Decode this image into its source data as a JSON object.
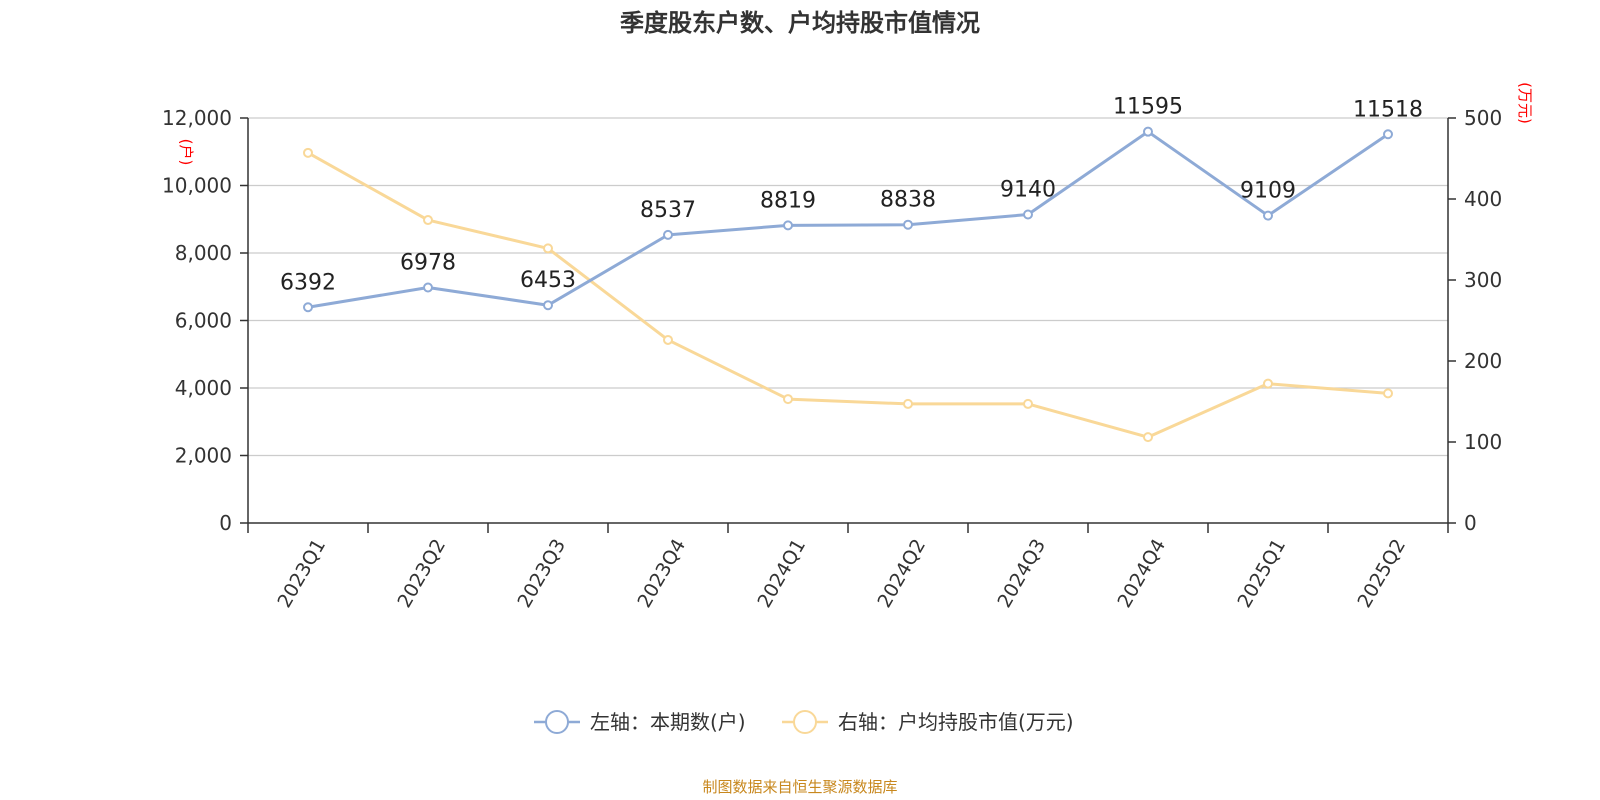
{
  "chart_data": {
    "type": "line",
    "title": "季度股东户数、户均持股市值情况",
    "categories": [
      "2023Q1",
      "2023Q2",
      "2023Q3",
      "2023Q4",
      "2024Q1",
      "2024Q2",
      "2024Q3",
      "2024Q4",
      "2025Q1",
      "2025Q2"
    ],
    "series": [
      {
        "name": "左轴：本期数(户)",
        "axis": "left",
        "color": "#8eaad6",
        "values": [
          6392,
          6978,
          6453,
          8537,
          8819,
          8838,
          9140,
          11595,
          9109,
          11518
        ],
        "show_labels": true
      },
      {
        "name": "右轴：户均持股市值(万元)",
        "axis": "right",
        "color": "#f9d898",
        "values": [
          457,
          374,
          339,
          226,
          153,
          147,
          147,
          106,
          172,
          160
        ],
        "show_labels": false
      }
    ],
    "y_left": {
      "min": 0,
      "max": 12000,
      "ticks": [
        0,
        2000,
        4000,
        6000,
        8000,
        10000,
        12000
      ],
      "tick_labels": [
        "0",
        "2,000",
        "4,000",
        "6,000",
        "8,000",
        "10,000",
        "12,000"
      ],
      "unit": "(户)"
    },
    "y_right": {
      "min": 0,
      "max": 500,
      "ticks": [
        0,
        100,
        200,
        300,
        400,
        500
      ],
      "tick_labels": [
        "0",
        "100",
        "200",
        "300",
        "400",
        "500"
      ],
      "unit": "(万元)"
    },
    "grid": true,
    "legend_position": "bottom-center",
    "source": "制图数据来自恒生聚源数据库"
  }
}
